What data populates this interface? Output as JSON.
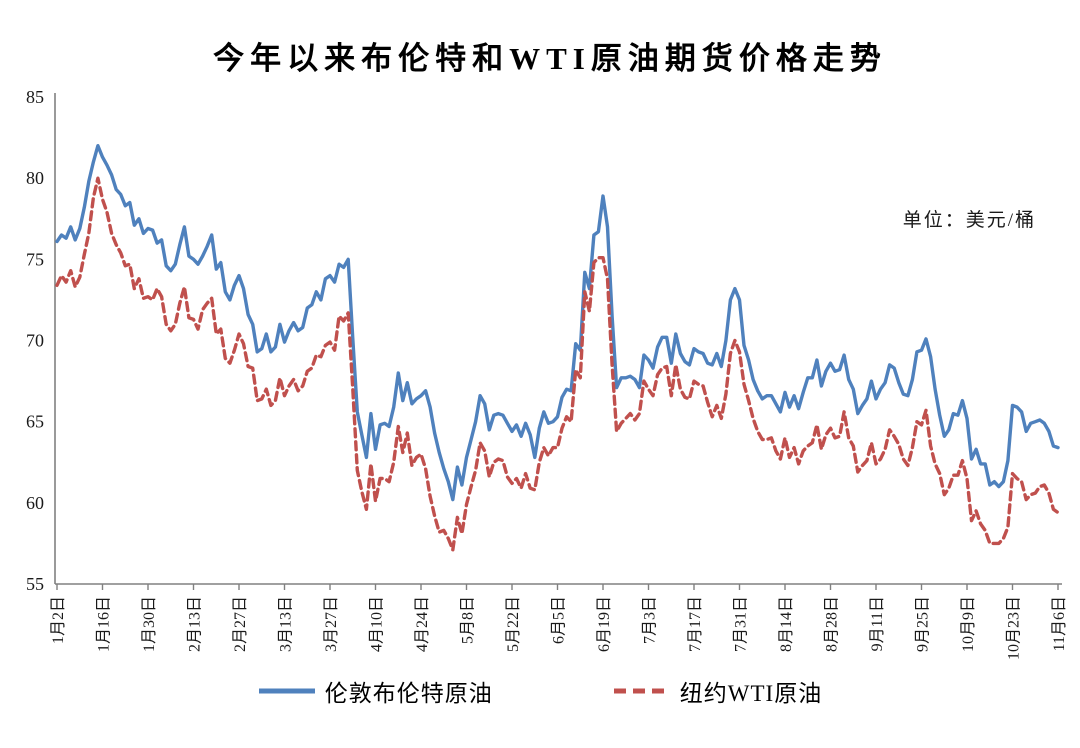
{
  "title": "今年以来布伦特和WTI原油期货价格走势",
  "unit_label": "单位：美元/桶",
  "chart_data": {
    "type": "line",
    "title": "今年以来布伦特和WTI原油期货价格走势",
    "ylabel": "美元/桶",
    "ylim": [
      55,
      85
    ],
    "y_ticks": [
      55,
      60,
      65,
      70,
      75,
      80,
      85
    ],
    "grid": false,
    "legend_position": "bottom",
    "axis_color": "#808080",
    "points_per_tick": 10,
    "x_tick_labels": [
      "1月2日",
      "1月16日",
      "1月30日",
      "2月13日",
      "2月27日",
      "3月13日",
      "3月27日",
      "4月10日",
      "4月24日",
      "5月8日",
      "5月22日",
      "6月5日",
      "6月19日",
      "7月3日",
      "7月17日",
      "7月31日",
      "8月14日",
      "8月28日",
      "9月11日",
      "9月25日",
      "10月9日",
      "10月23日",
      "11月6日"
    ],
    "series": [
      {
        "name": "伦敦布伦特原油",
        "color": "#4F81BD",
        "style": "solid",
        "values": [
          76.1,
          76.5,
          76.3,
          77.0,
          76.2,
          76.9,
          78.2,
          79.8,
          81.0,
          82.0,
          81.3,
          80.8,
          80.2,
          79.3,
          79.0,
          78.3,
          78.5,
          77.1,
          77.5,
          76.6,
          76.9,
          76.8,
          76.0,
          76.2,
          74.6,
          74.3,
          74.7,
          75.9,
          77.0,
          75.2,
          75.0,
          74.7,
          75.2,
          75.8,
          76.5,
          74.4,
          74.8,
          73.0,
          72.5,
          73.4,
          74.0,
          73.2,
          71.6,
          71.0,
          69.3,
          69.5,
          70.4,
          69.3,
          69.6,
          71.0,
          69.9,
          70.6,
          71.1,
          70.6,
          70.8,
          72.0,
          72.2,
          73.0,
          72.5,
          73.8,
          74.0,
          73.6,
          74.7,
          74.5,
          75.0,
          70.1,
          65.6,
          64.2,
          62.8,
          65.5,
          63.3,
          64.8,
          64.9,
          64.7,
          65.9,
          68.0,
          66.3,
          67.4,
          66.1,
          66.4,
          66.6,
          66.9,
          65.9,
          64.3,
          63.1,
          62.1,
          61.3,
          60.2,
          62.2,
          61.1,
          62.8,
          63.9,
          65.0,
          66.6,
          66.1,
          64.5,
          65.4,
          65.5,
          65.4,
          64.9,
          64.4,
          64.8,
          64.1,
          64.9,
          64.2,
          62.8,
          64.6,
          65.6,
          64.9,
          65.0,
          65.3,
          66.5,
          67.0,
          66.9,
          69.8,
          69.4,
          74.2,
          73.2,
          76.5,
          76.7,
          78.9,
          77.0,
          71.5,
          67.1,
          67.7,
          67.7,
          67.8,
          67.6,
          67.1,
          69.1,
          68.8,
          68.3,
          69.6,
          70.2,
          70.2,
          68.6,
          70.4,
          69.2,
          68.7,
          68.5,
          69.5,
          69.3,
          69.2,
          68.6,
          68.5,
          69.2,
          68.4,
          70.0,
          72.5,
          73.2,
          72.5,
          69.7,
          68.8,
          67.6,
          66.9,
          66.4,
          66.6,
          66.6,
          66.1,
          65.6,
          66.8,
          65.9,
          66.6,
          65.8,
          66.8,
          67.7,
          67.7,
          68.8,
          67.2,
          68.1,
          68.6,
          68.1,
          68.2,
          69.1,
          67.6,
          67.0,
          65.5,
          66.0,
          66.4,
          67.5,
          66.4,
          67.0,
          67.4,
          68.5,
          68.3,
          67.4,
          66.7,
          66.6,
          67.6,
          69.3,
          69.4,
          70.1,
          69.0,
          67.0,
          65.4,
          64.1,
          64.5,
          65.5,
          65.4,
          66.3,
          65.2,
          62.7,
          63.3,
          62.4,
          62.4,
          61.1,
          61.3,
          61.0,
          61.3,
          62.6,
          66.0,
          65.9,
          65.6,
          64.4,
          64.9,
          65.0,
          65.1,
          64.9,
          64.4,
          63.5,
          63.4
        ]
      },
      {
        "name": "纽约WTI原油",
        "color": "#C0504D",
        "style": "dashed",
        "values": [
          73.4,
          74.0,
          73.6,
          74.3,
          73.3,
          73.9,
          75.3,
          76.6,
          78.8,
          80.0,
          78.7,
          77.9,
          76.6,
          75.9,
          75.4,
          74.6,
          74.7,
          73.2,
          73.8,
          72.6,
          72.7,
          72.5,
          73.2,
          72.7,
          71.0,
          70.6,
          71.0,
          72.3,
          73.3,
          71.4,
          71.3,
          70.7,
          71.9,
          72.3,
          72.6,
          70.4,
          70.7,
          68.9,
          68.6,
          69.4,
          70.4,
          69.8,
          68.4,
          68.3,
          66.3,
          66.4,
          67.0,
          66.0,
          66.3,
          67.7,
          66.6,
          67.2,
          67.6,
          66.9,
          67.2,
          68.1,
          68.3,
          69.1,
          69.0,
          69.7,
          69.9,
          69.4,
          71.5,
          71.2,
          71.7,
          67.0,
          62.0,
          60.7,
          59.6,
          62.4,
          60.1,
          61.5,
          61.5,
          61.3,
          62.5,
          64.7,
          63.1,
          64.3,
          62.3,
          62.8,
          63.0,
          62.1,
          60.4,
          59.2,
          58.2,
          58.3,
          57.8,
          57.1,
          59.1,
          58.1,
          59.9,
          61.0,
          62.0,
          63.7,
          63.2,
          61.6,
          62.5,
          62.7,
          62.6,
          61.6,
          61.2,
          61.5,
          60.9,
          61.8,
          60.9,
          60.8,
          62.5,
          63.4,
          62.9,
          63.4,
          63.4,
          64.6,
          65.3,
          65.0,
          68.2,
          67.7,
          73.0,
          71.8,
          74.8,
          75.1,
          75.1,
          73.8,
          68.5,
          64.4,
          64.9,
          65.2,
          65.5,
          65.1,
          65.5,
          67.5,
          67.0,
          66.6,
          67.9,
          68.3,
          68.4,
          66.6,
          68.5,
          67.0,
          66.5,
          66.4,
          67.5,
          67.3,
          67.2,
          66.2,
          65.3,
          66.0,
          65.2,
          66.7,
          69.2,
          70.0,
          69.3,
          67.3,
          66.3,
          65.2,
          64.4,
          63.9,
          63.9,
          64.0,
          63.2,
          62.7,
          64.0,
          62.8,
          63.4,
          62.4,
          63.2,
          63.5,
          63.7,
          64.8,
          63.3,
          64.2,
          64.6,
          64.0,
          64.1,
          65.6,
          64.0,
          63.5,
          61.9,
          62.3,
          62.6,
          63.7,
          62.4,
          62.7,
          63.3,
          64.5,
          64.1,
          63.6,
          62.7,
          62.3,
          63.4,
          65.0,
          64.8,
          65.7,
          63.5,
          62.4,
          61.8,
          60.5,
          60.9,
          61.7,
          61.7,
          62.6,
          61.5,
          58.9,
          59.5,
          58.7,
          58.3,
          57.5,
          57.5,
          57.5,
          57.8,
          58.5,
          61.8,
          61.5,
          61.3,
          60.2,
          60.5,
          60.6,
          61.0,
          61.1,
          60.6,
          59.6,
          59.4
        ]
      }
    ]
  }
}
